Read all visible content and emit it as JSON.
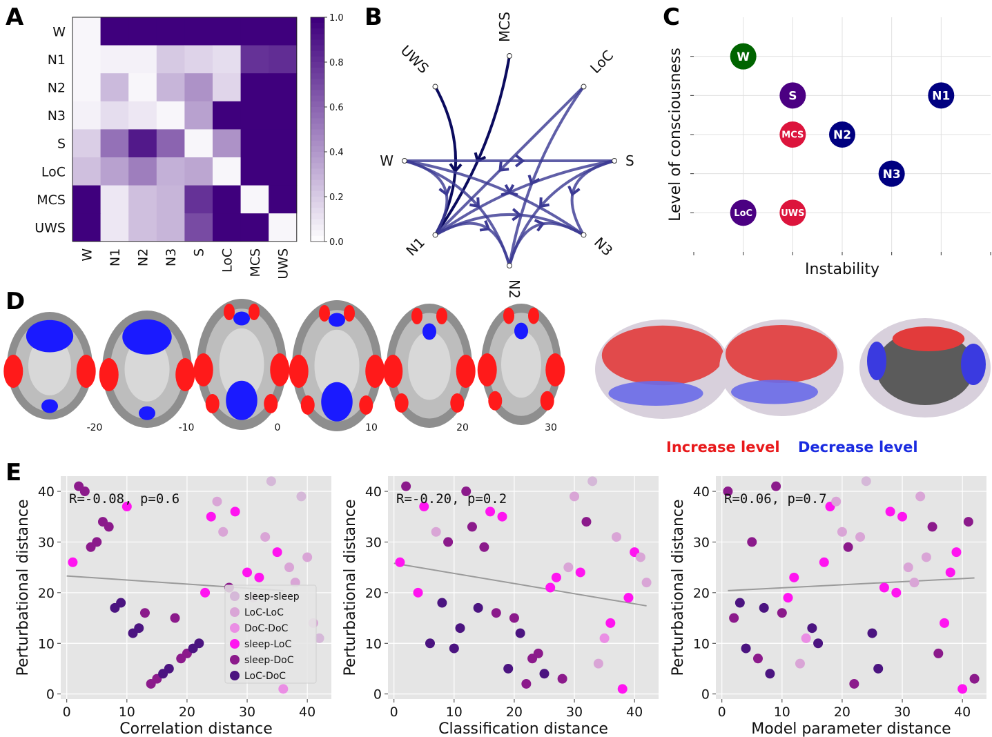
{
  "panels": {
    "A": "A",
    "B": "B",
    "C": "C",
    "D": "D",
    "E": "E"
  },
  "colors": {
    "heat_max": "#3f007d",
    "edge": "#2e3192",
    "edge_dark": "#0b0b5e",
    "grey_bg": "#e5e5e5",
    "W": "#006400",
    "S": "#4b0082",
    "N": "#000080",
    "DoC": "#dc143c",
    "LoC": "#4b0082",
    "increase": "#ff0000",
    "decrease": "#0000ff",
    "fit_line": "#9a9a9a"
  },
  "chart_data": [
    {
      "id": "A",
      "type": "heatmap",
      "title": "",
      "rows": [
        "W",
        "N1",
        "N2",
        "N3",
        "S",
        "LoC",
        "MCS",
        "UWS"
      ],
      "cols": [
        "W",
        "N1",
        "N2",
        "N3",
        "S",
        "LoC",
        "MCS",
        "UWS"
      ],
      "values": [
        [
          0.02,
          1.0,
          1.0,
          1.0,
          1.0,
          1.0,
          1.0,
          1.0
        ],
        [
          0.02,
          0.04,
          0.04,
          0.2,
          0.16,
          0.12,
          0.8,
          0.82
        ],
        [
          0.02,
          0.26,
          0.02,
          0.28,
          0.42,
          0.15,
          1.0,
          1.0
        ],
        [
          0.04,
          0.12,
          0.08,
          0.02,
          0.36,
          1.0,
          1.0,
          1.0
        ],
        [
          0.18,
          0.55,
          0.9,
          0.6,
          0.02,
          0.42,
          1.0,
          1.0
        ],
        [
          0.24,
          0.36,
          0.5,
          0.3,
          0.34,
          0.02,
          1.0,
          1.0
        ],
        [
          1.0,
          0.08,
          0.24,
          0.28,
          0.8,
          1.0,
          0.02,
          1.0
        ],
        [
          1.0,
          0.08,
          0.24,
          0.28,
          0.7,
          1.0,
          1.0,
          0.02
        ]
      ],
      "colorbar_ticks": [
        "0.0",
        "0.2",
        "0.4",
        "0.6",
        "0.8",
        "1.0"
      ],
      "clim": [
        0,
        1
      ]
    },
    {
      "id": "B",
      "type": "diagram",
      "nodes": [
        "MCS",
        "LoC",
        "S",
        "N3",
        "N2",
        "N1",
        "W",
        "UWS"
      ],
      "edges": [
        [
          "UWS",
          "N1",
          "dark"
        ],
        [
          "MCS",
          "N1",
          "dark"
        ],
        [
          "W",
          "S",
          "mid"
        ],
        [
          "W",
          "N1",
          "mid"
        ],
        [
          "W",
          "N2",
          "mid"
        ],
        [
          "W",
          "N3",
          "mid"
        ],
        [
          "S",
          "N1",
          "mid"
        ],
        [
          "S",
          "N2",
          "mid"
        ],
        [
          "LoC",
          "N1",
          "mid"
        ],
        [
          "LoC",
          "N2",
          "mid"
        ],
        [
          "N1",
          "N3",
          "mid"
        ],
        [
          "N2",
          "N3",
          "mid"
        ],
        [
          "N1",
          "N2",
          "mid"
        ],
        [
          "S",
          "N3",
          "mid"
        ]
      ]
    },
    {
      "id": "C",
      "type": "scatter",
      "xlabel": "Instability",
      "ylabel": "Level of consciousness",
      "points": [
        {
          "label": "W",
          "x": 1,
          "y": 5,
          "group": "W"
        },
        {
          "label": "S",
          "x": 2,
          "y": 4,
          "group": "S"
        },
        {
          "label": "N1",
          "x": 5,
          "y": 4,
          "group": "N"
        },
        {
          "label": "MCS",
          "x": 2,
          "y": 3,
          "group": "DoC"
        },
        {
          "label": "N2",
          "x": 3,
          "y": 3,
          "group": "N"
        },
        {
          "label": "N3",
          "x": 4,
          "y": 2,
          "group": "N"
        },
        {
          "label": "LoC",
          "x": 1,
          "y": 1,
          "group": "LoC"
        },
        {
          "label": "UWS",
          "x": 2,
          "y": 1,
          "group": "DoC"
        }
      ],
      "xlim": [
        0,
        6
      ],
      "ylim": [
        0,
        6
      ]
    },
    {
      "id": "E1",
      "type": "scatter",
      "xlabel": "Correlation distance",
      "ylabel": "Perturbational distance",
      "stat": "R=-0.08, p=0.6",
      "xlim": [
        -1,
        44
      ],
      "ylim": [
        -1,
        43
      ],
      "xticks": [
        0,
        10,
        20,
        30,
        40
      ],
      "yticks": [
        0,
        10,
        20,
        30,
        40
      ],
      "fit": [
        [
          0,
          23.3
        ],
        [
          36,
          20.4
        ]
      ],
      "legend": [
        "sleep-sleep",
        "LoC-LoC",
        "DoC-DoC",
        "sleep-LoC",
        "sleep-DoC",
        "LoC-DoC"
      ],
      "points": [
        [
          1,
          26,
          3
        ],
        [
          2,
          41,
          4
        ],
        [
          3,
          40,
          4
        ],
        [
          4,
          29,
          4
        ],
        [
          5,
          30,
          4
        ],
        [
          6,
          34,
          4
        ],
        [
          7,
          33,
          4
        ],
        [
          10,
          37,
          3
        ],
        [
          8,
          17,
          5
        ],
        [
          9,
          18,
          5
        ],
        [
          11,
          12,
          5
        ],
        [
          12,
          13,
          5
        ],
        [
          13,
          16,
          4
        ],
        [
          14,
          2,
          4
        ],
        [
          15,
          3,
          4
        ],
        [
          16,
          4,
          5
        ],
        [
          17,
          5,
          5
        ],
        [
          19,
          7,
          4
        ],
        [
          20,
          8,
          4
        ],
        [
          21,
          9,
          5
        ],
        [
          22,
          10,
          5
        ],
        [
          18,
          15,
          4
        ],
        [
          23,
          20,
          3
        ],
        [
          24,
          35,
          3
        ],
        [
          25,
          38,
          1
        ],
        [
          26,
          32,
          1
        ],
        [
          27,
          21,
          4
        ],
        [
          28,
          36,
          3
        ],
        [
          30,
          24,
          3
        ],
        [
          32,
          23,
          3
        ],
        [
          31,
          19,
          0
        ],
        [
          33,
          31,
          1
        ],
        [
          34,
          42,
          0
        ],
        [
          35,
          28,
          3
        ],
        [
          36,
          1,
          2
        ],
        [
          37,
          25,
          1
        ],
        [
          38,
          22,
          1
        ],
        [
          39,
          39,
          0
        ],
        [
          40,
          27,
          1
        ],
        [
          41,
          14,
          1
        ],
        [
          42,
          11,
          0
        ]
      ]
    },
    {
      "id": "E2",
      "type": "scatter",
      "xlabel": "Classification distance",
      "ylabel": "Perturbational distance",
      "stat": "R=-0.20, p=0.2",
      "xlim": [
        -1,
        44
      ],
      "ylim": [
        -1,
        43
      ],
      "xticks": [
        0,
        10,
        20,
        30,
        40
      ],
      "yticks": [
        0,
        10,
        20,
        30,
        40
      ],
      "fit": [
        [
          0,
          25.8
        ],
        [
          42,
          17.4
        ]
      ],
      "points": [
        [
          1,
          26,
          3
        ],
        [
          2,
          41,
          4
        ],
        [
          4,
          20,
          3
        ],
        [
          5,
          37,
          3
        ],
        [
          6,
          10,
          5
        ],
        [
          7,
          32,
          1
        ],
        [
          8,
          18,
          5
        ],
        [
          9,
          30,
          4
        ],
        [
          10,
          9,
          5
        ],
        [
          11,
          13,
          5
        ],
        [
          12,
          40,
          4
        ],
        [
          13,
          33,
          4
        ],
        [
          14,
          17,
          5
        ],
        [
          15,
          29,
          4
        ],
        [
          16,
          36,
          3
        ],
        [
          17,
          16,
          4
        ],
        [
          18,
          35,
          3
        ],
        [
          19,
          5,
          5
        ],
        [
          20,
          15,
          4
        ],
        [
          21,
          12,
          5
        ],
        [
          22,
          2,
          4
        ],
        [
          23,
          7,
          4
        ],
        [
          24,
          8,
          4
        ],
        [
          25,
          4,
          5
        ],
        [
          26,
          21,
          3
        ],
        [
          27,
          23,
          3
        ],
        [
          28,
          3,
          4
        ],
        [
          29,
          25,
          1
        ],
        [
          30,
          39,
          1
        ],
        [
          31,
          24,
          3
        ],
        [
          32,
          34,
          4
        ],
        [
          33,
          42,
          0
        ],
        [
          34,
          6,
          1
        ],
        [
          35,
          11,
          2
        ],
        [
          36,
          14,
          3
        ],
        [
          37,
          31,
          1
        ],
        [
          38,
          1,
          3
        ],
        [
          39,
          19,
          3
        ],
        [
          40,
          28,
          3
        ],
        [
          41,
          27,
          1
        ],
        [
          42,
          22,
          1
        ]
      ]
    },
    {
      "id": "E3",
      "type": "scatter",
      "xlabel": "Model parameter distance",
      "ylabel": "Perturbational distance",
      "stat": "R=0.06, p=0.7",
      "xlim": [
        -1,
        44
      ],
      "ylim": [
        -1,
        43
      ],
      "xticks": [
        0,
        10,
        20,
        30,
        40
      ],
      "yticks": [
        0,
        10,
        20,
        30,
        40
      ],
      "fit": [
        [
          1,
          20.4
        ],
        [
          42,
          22.9
        ]
      ],
      "points": [
        [
          1,
          40,
          4
        ],
        [
          2,
          15,
          4
        ],
        [
          3,
          18,
          5
        ],
        [
          4,
          9,
          5
        ],
        [
          5,
          30,
          4
        ],
        [
          6,
          7,
          4
        ],
        [
          7,
          17,
          5
        ],
        [
          8,
          4,
          5
        ],
        [
          9,
          41,
          4
        ],
        [
          10,
          16,
          4
        ],
        [
          11,
          19,
          3
        ],
        [
          12,
          23,
          3
        ],
        [
          13,
          6,
          1
        ],
        [
          14,
          11,
          2
        ],
        [
          15,
          13,
          5
        ],
        [
          16,
          10,
          5
        ],
        [
          17,
          26,
          3
        ],
        [
          18,
          37,
          3
        ],
        [
          19,
          38,
          1
        ],
        [
          20,
          32,
          1
        ],
        [
          21,
          29,
          4
        ],
        [
          22,
          2,
          4
        ],
        [
          23,
          31,
          1
        ],
        [
          24,
          42,
          0
        ],
        [
          25,
          12,
          5
        ],
        [
          26,
          5,
          5
        ],
        [
          27,
          21,
          3
        ],
        [
          28,
          36,
          3
        ],
        [
          29,
          20,
          3
        ],
        [
          30,
          35,
          3
        ],
        [
          31,
          25,
          1
        ],
        [
          32,
          22,
          1
        ],
        [
          33,
          39,
          1
        ],
        [
          34,
          27,
          1
        ],
        [
          35,
          33,
          4
        ],
        [
          36,
          8,
          4
        ],
        [
          37,
          14,
          3
        ],
        [
          38,
          24,
          3
        ],
        [
          39,
          28,
          3
        ],
        [
          40,
          1,
          3
        ],
        [
          41,
          34,
          4
        ],
        [
          42,
          3,
          4
        ]
      ]
    }
  ],
  "pointColors": [
    "#d5b8d8",
    "#d9a5d6",
    "#ea8ee4",
    "#ff14f0",
    "#8b1a8b",
    "#4b1480"
  ],
  "brainD": {
    "slices": [
      "-20",
      "-10",
      "0",
      "10",
      "20",
      "30"
    ],
    "legend_increase": "Increase level",
    "legend_decrease": "Decrease level"
  }
}
